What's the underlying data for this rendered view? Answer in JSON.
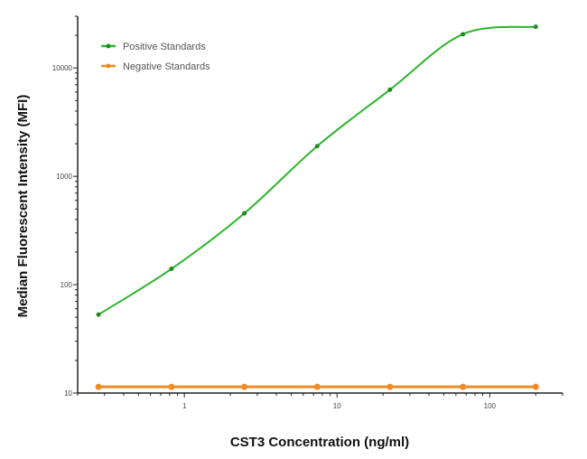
{
  "chart_data": {
    "type": "line",
    "title": "",
    "xlabel": "CST3 Concentration (ng/ml)",
    "ylabel": "Median  Fluorescent Intensity  (MFI)",
    "x_scale": "log",
    "y_scale": "log",
    "xlim": [
      0.2,
      300
    ],
    "ylim": [
      10,
      30000
    ],
    "x_ticks": [
      {
        "value": 1,
        "label": "1"
      },
      {
        "value": 10,
        "label": "10"
      },
      {
        "value": 100,
        "label": "100"
      }
    ],
    "y_ticks": [
      {
        "value": 10,
        "label": "10"
      },
      {
        "value": 100,
        "label": "100"
      },
      {
        "value": 1000,
        "label": "1000"
      },
      {
        "value": 10000,
        "label": "10000"
      }
    ],
    "grid": false,
    "legend_position": "top-left",
    "x": [
      0.274,
      0.823,
      2.47,
      7.41,
      22.2,
      66.7,
      200
    ],
    "series": [
      {
        "name": "Positive Standards",
        "color": "#2db52d",
        "values": [
          53,
          140,
          455,
          1900,
          6300,
          20500,
          24000
        ]
      },
      {
        "name": "Negative Standards",
        "color": "#f08a24",
        "values": [
          11.4,
          11.4,
          11.4,
          11.4,
          11.4,
          11.4,
          11.4
        ]
      }
    ]
  }
}
